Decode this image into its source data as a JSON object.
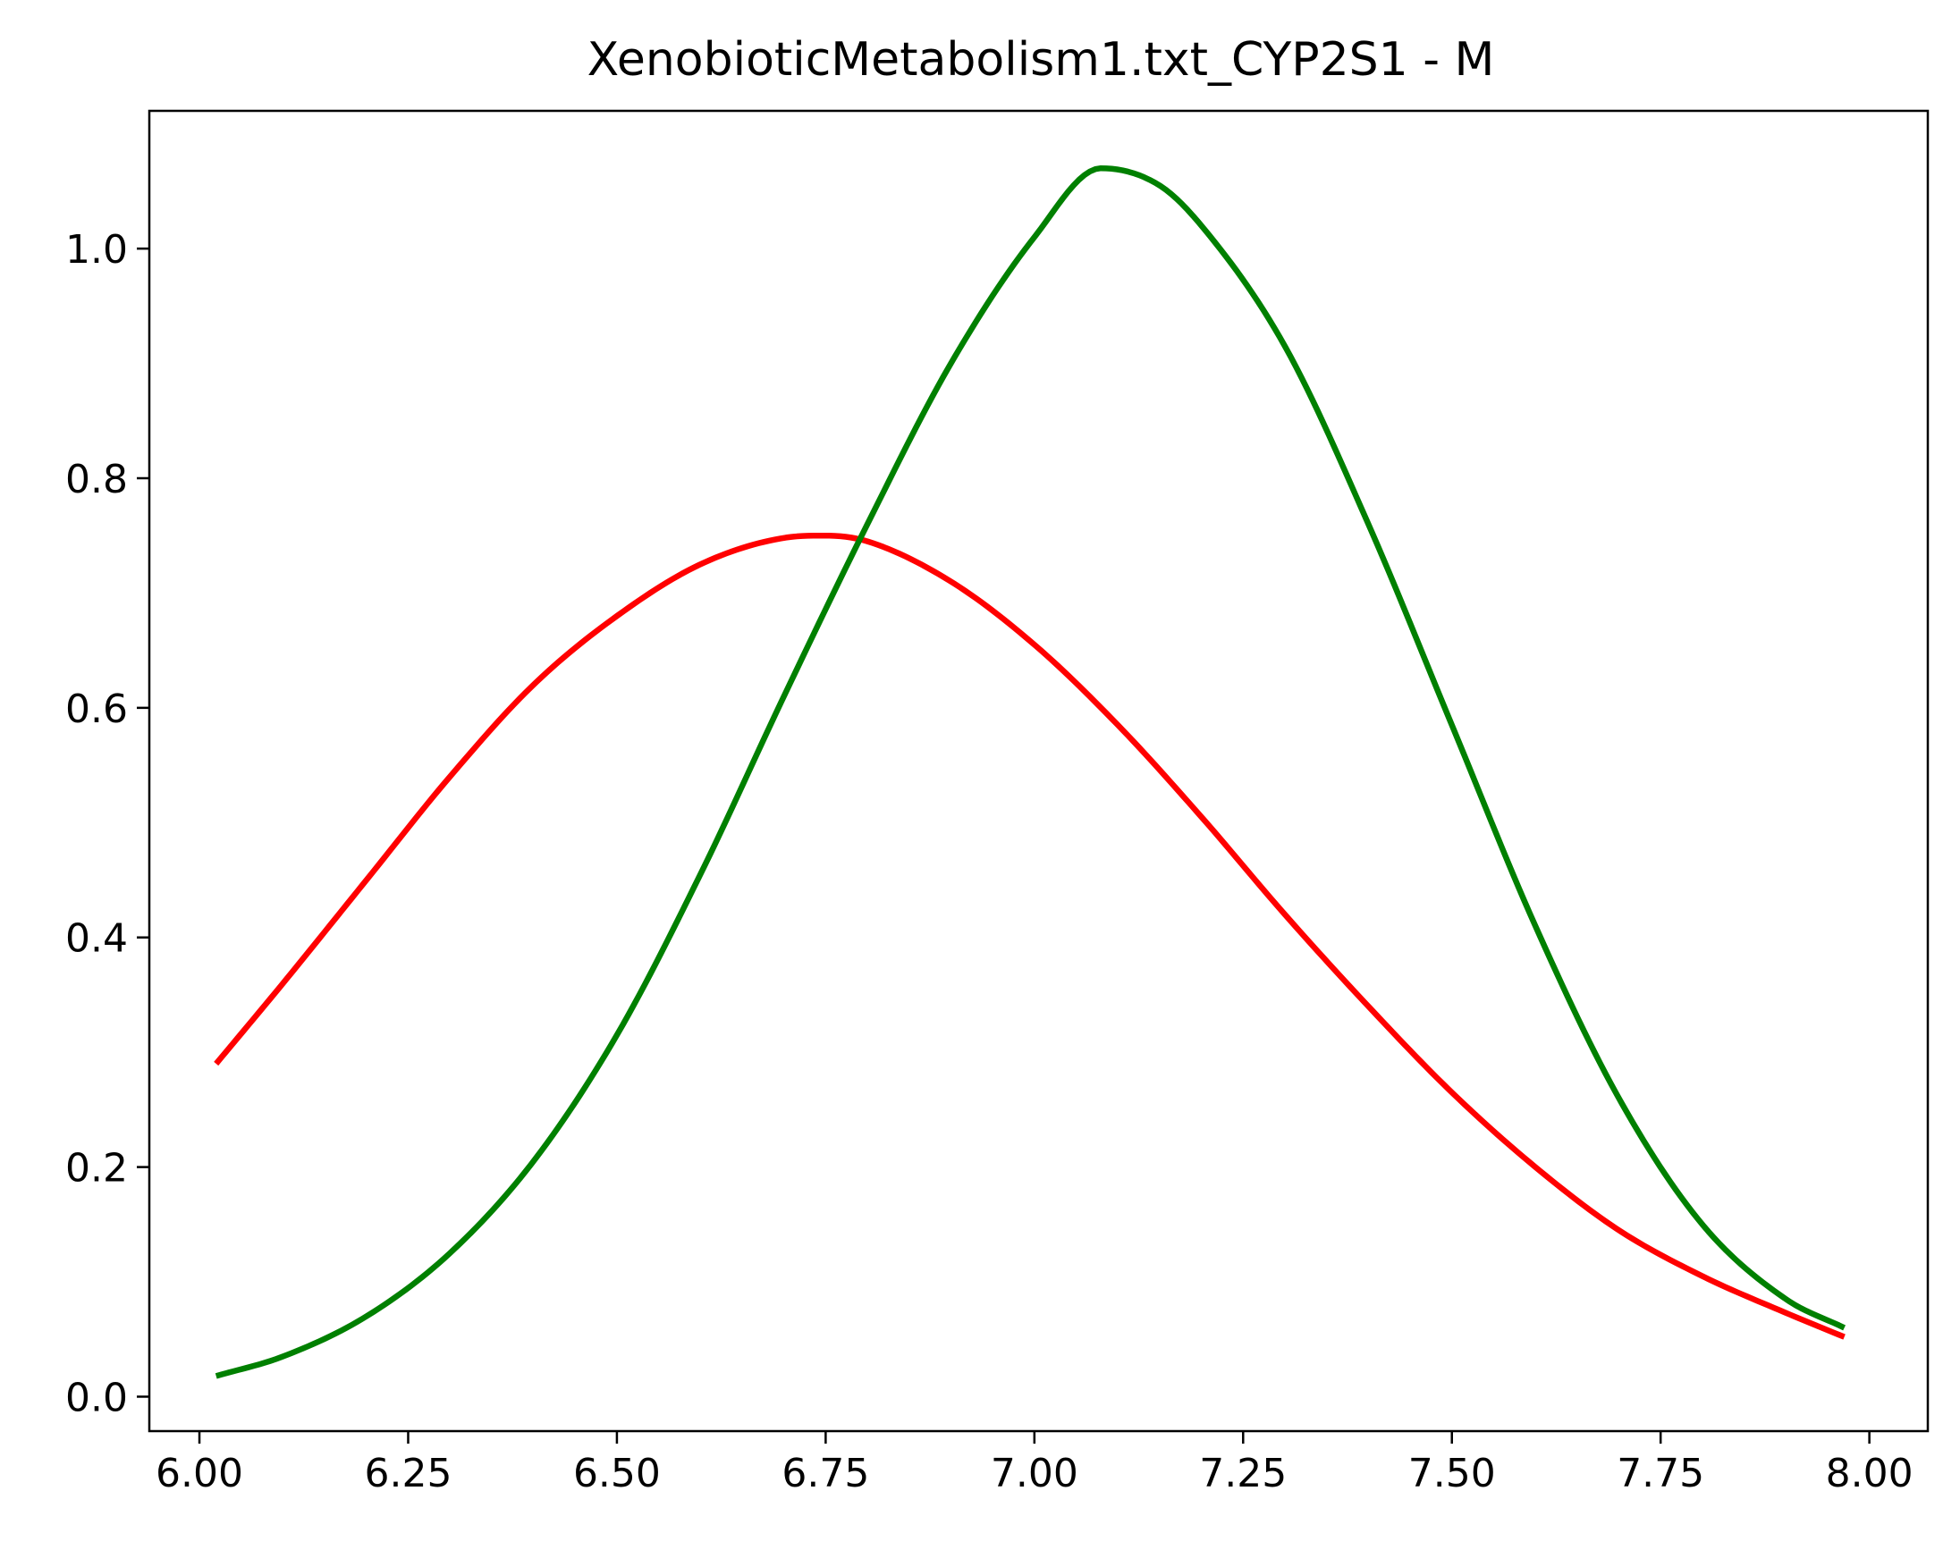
{
  "chart_data": {
    "type": "line",
    "title": "XenobioticMetabolism1.txt_CYP2S1 - M",
    "xlabel": "",
    "ylabel": "",
    "xlim": [
      5.94,
      8.07
    ],
    "ylim": [
      -0.03,
      1.12
    ],
    "xticks": [
      6.0,
      6.25,
      6.5,
      6.75,
      7.0,
      7.25,
      7.5,
      7.75,
      8.0
    ],
    "xtick_labels": [
      "6.00",
      "6.25",
      "6.50",
      "6.75",
      "7.00",
      "7.25",
      "7.50",
      "7.75",
      "8.00"
    ],
    "yticks": [
      0.0,
      0.2,
      0.4,
      0.6,
      0.8,
      1.0
    ],
    "ytick_labels": [
      "0.0",
      "0.2",
      "0.4",
      "0.6",
      "0.8",
      "1.0"
    ],
    "grid": false,
    "legend": "none",
    "series": [
      {
        "color": "#ff0000",
        "x": [
          6.02,
          6.1,
          6.2,
          6.3,
          6.4,
          6.5,
          6.6,
          6.7,
          6.75,
          6.8,
          6.9,
          7.0,
          7.1,
          7.2,
          7.3,
          7.4,
          7.5,
          7.6,
          7.7,
          7.8,
          7.9,
          7.97
        ],
        "y": [
          0.29,
          0.36,
          0.45,
          0.54,
          0.62,
          0.68,
          0.725,
          0.748,
          0.75,
          0.745,
          0.71,
          0.655,
          0.585,
          0.505,
          0.42,
          0.34,
          0.265,
          0.2,
          0.145,
          0.105,
          0.073,
          0.052
        ]
      },
      {
        "color": "#008000",
        "x": [
          6.02,
          6.1,
          6.2,
          6.3,
          6.4,
          6.5,
          6.6,
          6.7,
          6.8,
          6.9,
          7.0,
          7.08,
          7.15,
          7.2,
          7.3,
          7.4,
          7.5,
          7.6,
          7.7,
          7.8,
          7.9,
          7.97
        ],
        "y": [
          0.018,
          0.035,
          0.07,
          0.125,
          0.205,
          0.315,
          0.455,
          0.61,
          0.76,
          0.9,
          1.01,
          1.07,
          1.055,
          1.02,
          0.915,
          0.76,
          0.585,
          0.41,
          0.26,
          0.15,
          0.085,
          0.06
        ]
      }
    ]
  }
}
